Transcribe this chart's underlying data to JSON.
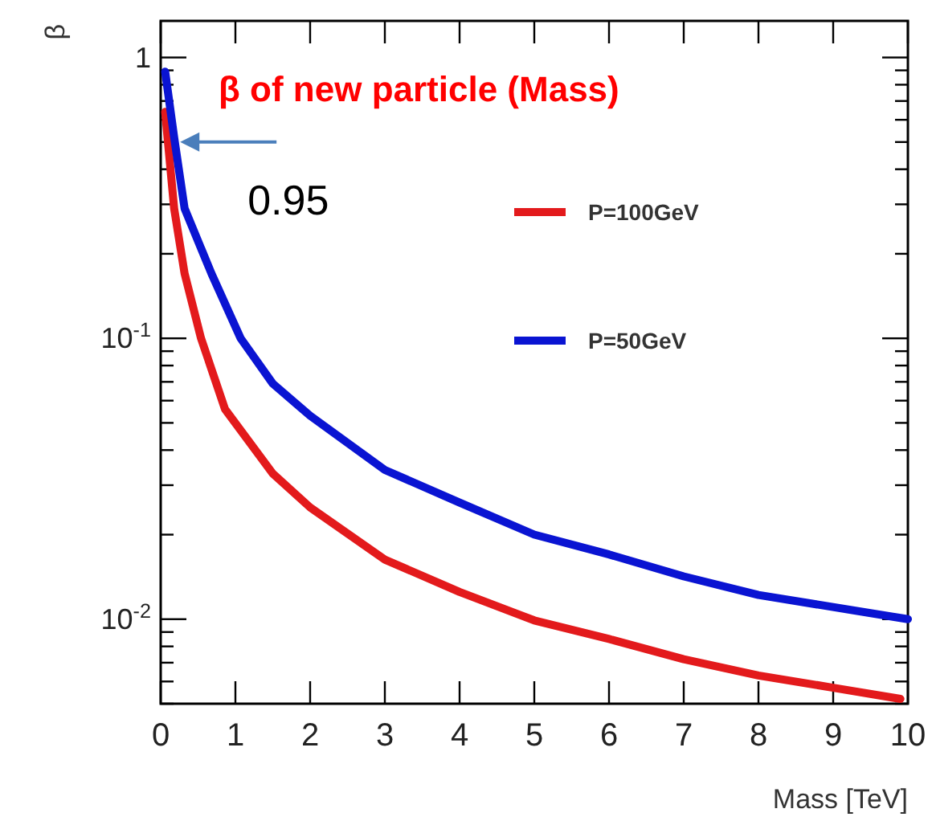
{
  "chart_data": {
    "type": "line",
    "title": "β of new particle (Mass)",
    "xlabel": "Mass [TeV]",
    "ylabel": "β",
    "log": "y",
    "legend": "top right",
    "line_style": "solid",
    "marker": "none",
    "xlim": [
      0,
      10
    ],
    "xticks": [
      0,
      1,
      2,
      3,
      4,
      5,
      6,
      7,
      8,
      9,
      10
    ],
    "ylim": [
      0.005,
      1.35
    ],
    "yticks": [
      {
        "value": 0.005,
        "label": null
      },
      {
        "value": 0.006,
        "label": null
      },
      {
        "value": 0.007,
        "label": null
      },
      {
        "value": 0.008,
        "label": null
      },
      {
        "value": 0.009,
        "label": null
      },
      {
        "value": 0.01,
        "label": "10$^{-2}$"
      },
      {
        "value": 0.02,
        "label": null
      },
      {
        "value": 0.03,
        "label": null
      },
      {
        "value": 0.04,
        "label": null
      },
      {
        "value": 0.05,
        "label": null
      },
      {
        "value": 0.06,
        "label": null
      },
      {
        "value": 0.07,
        "label": null
      },
      {
        "value": 0.08,
        "label": null
      },
      {
        "value": 0.09,
        "label": null
      },
      {
        "value": 0.1,
        "label": "10$^{-1}$"
      },
      {
        "value": 0.2,
        "label": null
      },
      {
        "value": 0.3,
        "label": null
      },
      {
        "value": 0.4,
        "label": null
      },
      {
        "value": 0.5,
        "label": null
      },
      {
        "value": 0.6,
        "label": null
      },
      {
        "value": 0.7,
        "label": null
      },
      {
        "value": 0.8,
        "label": null
      },
      {
        "value": 0.9,
        "label": null
      },
      {
        "value": 1,
        "label": "1"
      }
    ],
    "annotations": [
      {
        "text": "0.95",
        "x": 0.26,
        "y": 0.5
      }
    ],
    "series": [
      {
        "name": "P=100GeV",
        "color": "#e31a1c",
        "x": [
          0.06,
          0.18,
          0.32,
          0.54,
          0.86,
          1.5,
          2,
          3,
          4,
          5,
          6,
          7,
          8,
          9,
          9.9
        ],
        "values": [
          0.64,
          0.29,
          0.17,
          0.1,
          0.056,
          0.033,
          0.025,
          0.0163,
          0.0125,
          0.0099,
          0.0085,
          0.0072,
          0.0063,
          0.0057,
          0.0052
        ]
      },
      {
        "name": "P=50GeV",
        "color": "#0a14d2",
        "x": [
          0.06,
          0.18,
          0.32,
          0.68,
          1.07,
          1.5,
          2,
          3,
          4,
          5,
          6,
          7,
          8,
          10
        ],
        "values": [
          0.89,
          0.52,
          0.29,
          0.17,
          0.1,
          0.069,
          0.053,
          0.034,
          0.026,
          0.02,
          0.017,
          0.0142,
          0.0122,
          0.01
        ]
      }
    ]
  }
}
